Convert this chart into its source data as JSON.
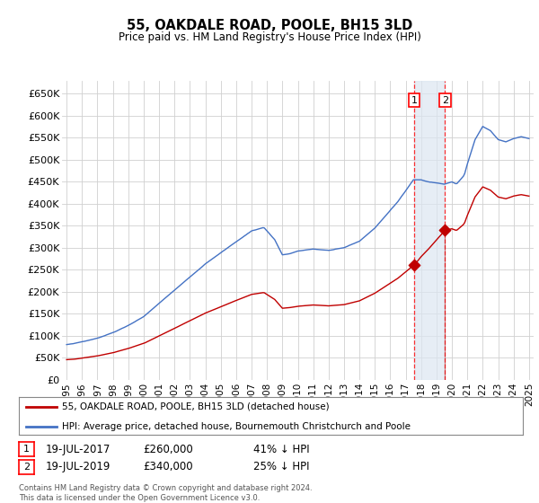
{
  "title": "55, OAKDALE ROAD, POOLE, BH15 3LD",
  "subtitle": "Price paid vs. HM Land Registry's House Price Index (HPI)",
  "legend_line1": "55, OAKDALE ROAD, POOLE, BH15 3LD (detached house)",
  "legend_line2": "HPI: Average price, detached house, Bournemouth Christchurch and Poole",
  "sale1_date": "19-JUL-2017",
  "sale1_price": 260000,
  "sale1_label": "41% ↓ HPI",
  "sale2_date": "19-JUL-2019",
  "sale2_price": 340000,
  "sale2_label": "25% ↓ HPI",
  "footer": "Contains HM Land Registry data © Crown copyright and database right 2024.\nThis data is licensed under the Open Government Licence v3.0.",
  "hpi_color": "#4472c4",
  "price_color": "#c00000",
  "shade_color": "#dce6f1",
  "background_color": "#ffffff",
  "grid_color": "#d0d0d0",
  "ylim": [
    0,
    680000
  ],
  "yticks": [
    0,
    50000,
    100000,
    150000,
    200000,
    250000,
    300000,
    350000,
    400000,
    450000,
    500000,
    550000,
    600000,
    650000
  ],
  "x_start_year": 1995,
  "x_end_year": 2025
}
